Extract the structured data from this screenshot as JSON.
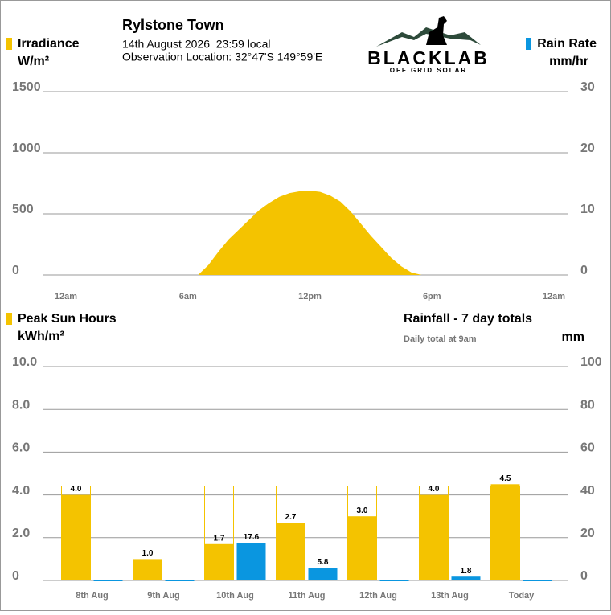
{
  "header": {
    "title": "Rylstone Town",
    "datetime": "14th August 2026  23:59 local",
    "location": "Observation Location: 32°47'S 149°59'E",
    "logo": "BLACKLAB",
    "logo_sub": "OFF GRID SOLAR"
  },
  "chart_data": [
    {
      "type": "area",
      "legend_left": {
        "name": "Irradiance",
        "unit": "W/m²"
      },
      "legend_right": {
        "name": "Rain Rate",
        "unit": "mm/hr"
      },
      "x": [
        6.5,
        7,
        7.5,
        8,
        8.5,
        9,
        9.5,
        10,
        10.5,
        11,
        11.5,
        12,
        12.5,
        13,
        13.5,
        14,
        14.5,
        15,
        15.5,
        16,
        16.5,
        17,
        17.5
      ],
      "series": [
        {
          "name": "Irradiance",
          "color": "#f4c300",
          "values": [
            0,
            80,
            190,
            290,
            370,
            450,
            530,
            590,
            640,
            670,
            685,
            690,
            680,
            650,
            600,
            520,
            420,
            320,
            230,
            140,
            70,
            20,
            0
          ]
        }
      ],
      "xlim": [
        0,
        24
      ],
      "xticks": [
        {
          "value": 0,
          "label": "12am"
        },
        {
          "value": 6,
          "label": "6am"
        },
        {
          "value": 12,
          "label": "12pm"
        },
        {
          "value": 18,
          "label": "6pm"
        },
        {
          "value": 24,
          "label": "12am"
        }
      ],
      "ylim": [
        0,
        1500
      ],
      "yticks": [
        0,
        500,
        1000,
        1500
      ],
      "y2lim": [
        0,
        30
      ],
      "y2ticks": [
        0,
        10,
        20,
        30
      ],
      "grid": true
    },
    {
      "type": "bar",
      "legend_left": {
        "name": "Peak Sun Hours",
        "unit": "kWh/m²"
      },
      "legend_right": {
        "name": "Rainfall - 7 day totals",
        "note": "Daily total at 9am",
        "unit": "mm"
      },
      "categories": [
        "8th Aug",
        "9th Aug",
        "10th Aug",
        "11th Aug",
        "12th Aug",
        "13th Aug",
        "Today"
      ],
      "series": [
        {
          "name": "Peak Sun Hours",
          "color": "#f4c300",
          "values": [
            4.0,
            1.0,
            1.7,
            2.7,
            3.0,
            4.0,
            4.5
          ],
          "value_labels": [
            "4.0",
            "1.0",
            "1.7",
            "2.7",
            "3.0",
            "4.0",
            "4.5"
          ]
        },
        {
          "name": "Rainfall",
          "color": "#0a96e0",
          "axis": "y2",
          "values": [
            0,
            0,
            17.6,
            5.8,
            0,
            1.8,
            0
          ]
        }
      ],
      "ylim": [
        0,
        10
      ],
      "yticks": [
        0,
        {
          "value": 2,
          "label": "2.0"
        },
        {
          "value": 4,
          "label": "4.0"
        },
        {
          "value": 6,
          "label": "6.0"
        },
        {
          "value": 8,
          "label": "8.0"
        },
        {
          "value": 10,
          "label": "10.0"
        }
      ],
      "y2lim": [
        0,
        100
      ],
      "y2ticks": [
        0,
        20,
        40,
        60,
        80,
        100
      ],
      "grid": true
    }
  ]
}
